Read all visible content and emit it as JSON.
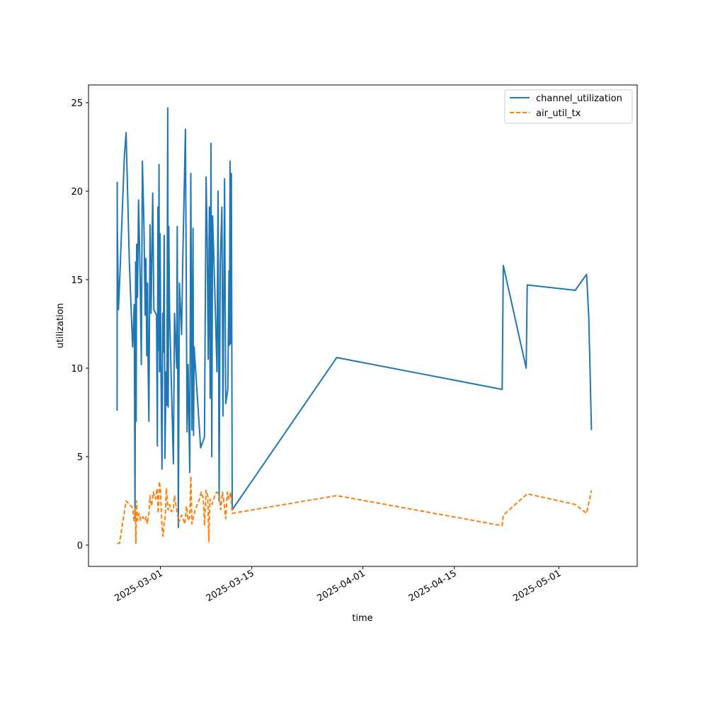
{
  "chart_data": {
    "type": "line",
    "xlabel": "time",
    "ylabel": "utilization",
    "xlim": [
      "2025-02-18",
      "2025-05-13"
    ],
    "ylim": [
      -1.2,
      26
    ],
    "x_ticks": [
      "2025-03-01",
      "2025-03-15",
      "2025-04-01",
      "2025-04-15",
      "2025-05-01"
    ],
    "y_ticks": [
      0,
      5,
      10,
      15,
      20,
      25
    ],
    "legend": {
      "placement": "top-right"
    },
    "grid": false,
    "series": [
      {
        "name": "channel_utilization",
        "color": "#1f77b4",
        "style": "solid",
        "points": [
          [
            "2025-02-22T09:00",
            7.6
          ],
          [
            "2025-02-22T09:30",
            20.5
          ],
          [
            "2025-02-22T10:00",
            18.1
          ],
          [
            "2025-02-22T14:00",
            13.3
          ],
          [
            "2025-02-22T20:00",
            15.5
          ],
          [
            "2025-02-23T06:00",
            19.6
          ],
          [
            "2025-02-23T12:00",
            22.0
          ],
          [
            "2025-02-23T18:00",
            23.3
          ],
          [
            "2025-02-24T06:00",
            16.0
          ],
          [
            "2025-02-24T18:00",
            11.2
          ],
          [
            "2025-02-25T00:00",
            13.6
          ],
          [
            "2025-02-25T03:00",
            1.5
          ],
          [
            "2025-02-25T05:00",
            16.0
          ],
          [
            "2025-02-25T07:00",
            7.0
          ],
          [
            "2025-02-25T09:00",
            17.0
          ],
          [
            "2025-02-25T12:00",
            14.0
          ],
          [
            "2025-02-25T16:00",
            19.5
          ],
          [
            "2025-02-25T22:00",
            15.0
          ],
          [
            "2025-02-26T02:00",
            10.2
          ],
          [
            "2025-02-26T06:00",
            21.7
          ],
          [
            "2025-02-26T12:00",
            17.9
          ],
          [
            "2025-02-26T16:00",
            13.0
          ],
          [
            "2025-02-26T19:00",
            16.2
          ],
          [
            "2025-02-26T22:00",
            10.7
          ],
          [
            "2025-02-27T01:00",
            14.8
          ],
          [
            "2025-02-27T03:00",
            10.1
          ],
          [
            "2025-02-27T06:00",
            7.0
          ],
          [
            "2025-02-27T10:00",
            18.1
          ],
          [
            "2025-02-27T14:00",
            13.1
          ],
          [
            "2025-02-27T20:00",
            19.9
          ],
          [
            "2025-02-28T00:00",
            13.3
          ],
          [
            "2025-02-28T10:00",
            13.0
          ],
          [
            "2025-02-28T13:00",
            5.6
          ],
          [
            "2025-02-28T15:00",
            19.1
          ],
          [
            "2025-02-28T17:00",
            11.0
          ],
          [
            "2025-02-28T19:00",
            21.5
          ],
          [
            "2025-02-28T21:00",
            9.8
          ],
          [
            "2025-02-28T23:00",
            17.6
          ],
          [
            "2025-03-01T02:00",
            10.0
          ],
          [
            "2025-03-01T06:00",
            4.3
          ],
          [
            "2025-03-01T09:00",
            13.1
          ],
          [
            "2025-03-01T11:00",
            10.9
          ],
          [
            "2025-03-01T14:00",
            17.5
          ],
          [
            "2025-03-01T17:00",
            4.9
          ],
          [
            "2025-03-01T21:00",
            9.8
          ],
          [
            "2025-03-02T00:00",
            7.9
          ],
          [
            "2025-03-02T03:00",
            24.7
          ],
          [
            "2025-03-02T05:00",
            7.8
          ],
          [
            "2025-03-02T07:00",
            18.0
          ],
          [
            "2025-03-02T10:00",
            13.0
          ],
          [
            "2025-03-03T00:00",
            4.6
          ],
          [
            "2025-03-03T04:00",
            13.1
          ],
          [
            "2025-03-03T12:00",
            10.0
          ],
          [
            "2025-03-03T14:00",
            18.0
          ],
          [
            "2025-03-03T18:00",
            1.0
          ],
          [
            "2025-03-03T22:00",
            14.8
          ],
          [
            "2025-03-04T06:00",
            11.9
          ],
          [
            "2025-03-04T10:00",
            15.8
          ],
          [
            "2025-03-04T20:00",
            23.5
          ],
          [
            "2025-03-05T02:00",
            6.4
          ],
          [
            "2025-03-05T06:00",
            10.2
          ],
          [
            "2025-03-05T12:00",
            4.1
          ],
          [
            "2025-03-05T16:00",
            21.0
          ],
          [
            "2025-03-05T20:00",
            6.5
          ],
          [
            "2025-03-06T00:00",
            17.9
          ],
          [
            "2025-03-06T02:00",
            6.2
          ],
          [
            "2025-03-06T04:00",
            11.2
          ],
          [
            "2025-03-07T04:00",
            5.5
          ],
          [
            "2025-03-07T18:00",
            6.1
          ],
          [
            "2025-03-08T00:00",
            20.8
          ],
          [
            "2025-03-08T04:00",
            17.3
          ],
          [
            "2025-03-08T08:00",
            10.5
          ],
          [
            "2025-03-08T12:00",
            19.1
          ],
          [
            "2025-03-08T15:00",
            8.3
          ],
          [
            "2025-03-08T18:00",
            22.7
          ],
          [
            "2025-03-08T21:00",
            5.0
          ],
          [
            "2025-03-09T00:00",
            18.6
          ],
          [
            "2025-03-09T08:00",
            14.4
          ],
          [
            "2025-03-09T16:00",
            9.8
          ],
          [
            "2025-03-09T20:00",
            20.0
          ],
          [
            "2025-03-10T00:00",
            2.5
          ],
          [
            "2025-03-10T04:00",
            15.9
          ],
          [
            "2025-03-10T10:00",
            19.1
          ],
          [
            "2025-03-10T14:00",
            7.3
          ],
          [
            "2025-03-10T20:00",
            20.7
          ],
          [
            "2025-03-11T00:00",
            8.0
          ],
          [
            "2025-03-11T08:00",
            8.8
          ],
          [
            "2025-03-11T12:00",
            15.5
          ],
          [
            "2025-03-11T14:00",
            11.3
          ],
          [
            "2025-03-11T16:00",
            21.7
          ],
          [
            "2025-03-11T18:00",
            11.4
          ],
          [
            "2025-03-11T21:00",
            21.0
          ],
          [
            "2025-03-12T00:00",
            2.0
          ],
          [
            "2025-03-28T00:00",
            10.6
          ],
          [
            "2025-04-22T08:00",
            8.8
          ],
          [
            "2025-04-22T12:00",
            15.8
          ],
          [
            "2025-04-26T00:00",
            10.0
          ],
          [
            "2025-04-26T04:00",
            14.7
          ],
          [
            "2025-05-03T12:00",
            14.4
          ],
          [
            "2025-05-05T06:00",
            15.3
          ],
          [
            "2025-05-05T14:00",
            12.9
          ],
          [
            "2025-05-06T00:00",
            6.5
          ]
        ]
      },
      {
        "name": "air_util_tx",
        "color": "#ff7f0e",
        "style": "dashed",
        "points": [
          [
            "2025-02-22T09:00",
            0.1
          ],
          [
            "2025-02-22T18:00",
            0.1
          ],
          [
            "2025-02-23T18:00",
            2.5
          ],
          [
            "2025-02-24T18:00",
            2.1
          ],
          [
            "2025-02-25T00:00",
            1.3
          ],
          [
            "2025-02-25T04:00",
            2.1
          ],
          [
            "2025-02-25T06:00",
            0.1
          ],
          [
            "2025-02-25T08:00",
            2.5
          ],
          [
            "2025-02-25T12:00",
            1.4
          ],
          [
            "2025-02-25T18:00",
            1.8
          ],
          [
            "2025-02-26T00:00",
            1.4
          ],
          [
            "2025-02-26T08:00",
            1.6
          ],
          [
            "2025-02-26T16:00",
            1.4
          ],
          [
            "2025-02-26T20:00",
            1.6
          ],
          [
            "2025-02-27T00:00",
            1.2
          ],
          [
            "2025-02-27T06:00",
            1.8
          ],
          [
            "2025-02-27T10:00",
            2.8
          ],
          [
            "2025-02-27T16:00",
            2.2
          ],
          [
            "2025-02-27T22:00",
            3.0
          ],
          [
            "2025-02-28T06:00",
            2.6
          ],
          [
            "2025-02-28T12:00",
            3.2
          ],
          [
            "2025-02-28T16:00",
            1.8
          ],
          [
            "2025-02-28T20:00",
            3.6
          ],
          [
            "2025-03-01T00:00",
            3.2
          ],
          [
            "2025-03-01T06:00",
            1.0
          ],
          [
            "2025-03-01T10:00",
            0.5
          ],
          [
            "2025-03-01T14:00",
            1.3
          ],
          [
            "2025-03-01T18:00",
            1.6
          ],
          [
            "2025-03-01T22:00",
            3.2
          ],
          [
            "2025-03-02T04:00",
            2.0
          ],
          [
            "2025-03-02T10:00",
            2.3
          ],
          [
            "2025-03-02T16:00",
            1.9
          ],
          [
            "2025-03-03T00:00",
            2.0
          ],
          [
            "2025-03-03T04:00",
            2.8
          ],
          [
            "2025-03-03T12:00",
            2.0
          ],
          [
            "2025-03-03T20:00",
            1.3
          ],
          [
            "2025-03-04T06:00",
            1.7
          ],
          [
            "2025-03-04T18:00",
            1.2
          ],
          [
            "2025-03-05T00:00",
            2.2
          ],
          [
            "2025-03-05T06:00",
            1.4
          ],
          [
            "2025-03-05T12:00",
            1.6
          ],
          [
            "2025-03-05T16:00",
            3.9
          ],
          [
            "2025-03-05T20:00",
            1.2
          ],
          [
            "2025-03-06T08:00",
            2.0
          ],
          [
            "2025-03-07T00:00",
            2.6
          ],
          [
            "2025-03-07T06:00",
            3.0
          ],
          [
            "2025-03-07T14:00",
            2.6
          ],
          [
            "2025-03-07T18:00",
            1.1
          ],
          [
            "2025-03-08T00:00",
            3.1
          ],
          [
            "2025-03-08T06:00",
            2.8
          ],
          [
            "2025-03-08T10:00",
            0.2
          ],
          [
            "2025-03-08T14:00",
            2.6
          ],
          [
            "2025-03-08T22:00",
            2.3
          ],
          [
            "2025-03-09T06:00",
            2.7
          ],
          [
            "2025-03-09T14:00",
            3.0
          ],
          [
            "2025-03-10T00:00",
            2.9
          ],
          [
            "2025-03-10T06:00",
            2.0
          ],
          [
            "2025-03-10T12:00",
            3.0
          ],
          [
            "2025-03-10T18:00",
            2.4
          ],
          [
            "2025-03-11T00:00",
            1.5
          ],
          [
            "2025-03-11T06:00",
            3.0
          ],
          [
            "2025-03-11T12:00",
            2.6
          ],
          [
            "2025-03-11T18:00",
            3.0
          ],
          [
            "2025-03-12T00:00",
            1.8
          ],
          [
            "2025-03-28T00:00",
            2.8
          ],
          [
            "2025-04-22T08:00",
            1.1
          ],
          [
            "2025-04-22T12:00",
            1.7
          ],
          [
            "2025-04-26T04:00",
            2.9
          ],
          [
            "2025-05-03T12:00",
            2.3
          ],
          [
            "2025-05-05T06:00",
            1.8
          ],
          [
            "2025-05-06T00:00",
            3.1
          ]
        ]
      }
    ]
  }
}
